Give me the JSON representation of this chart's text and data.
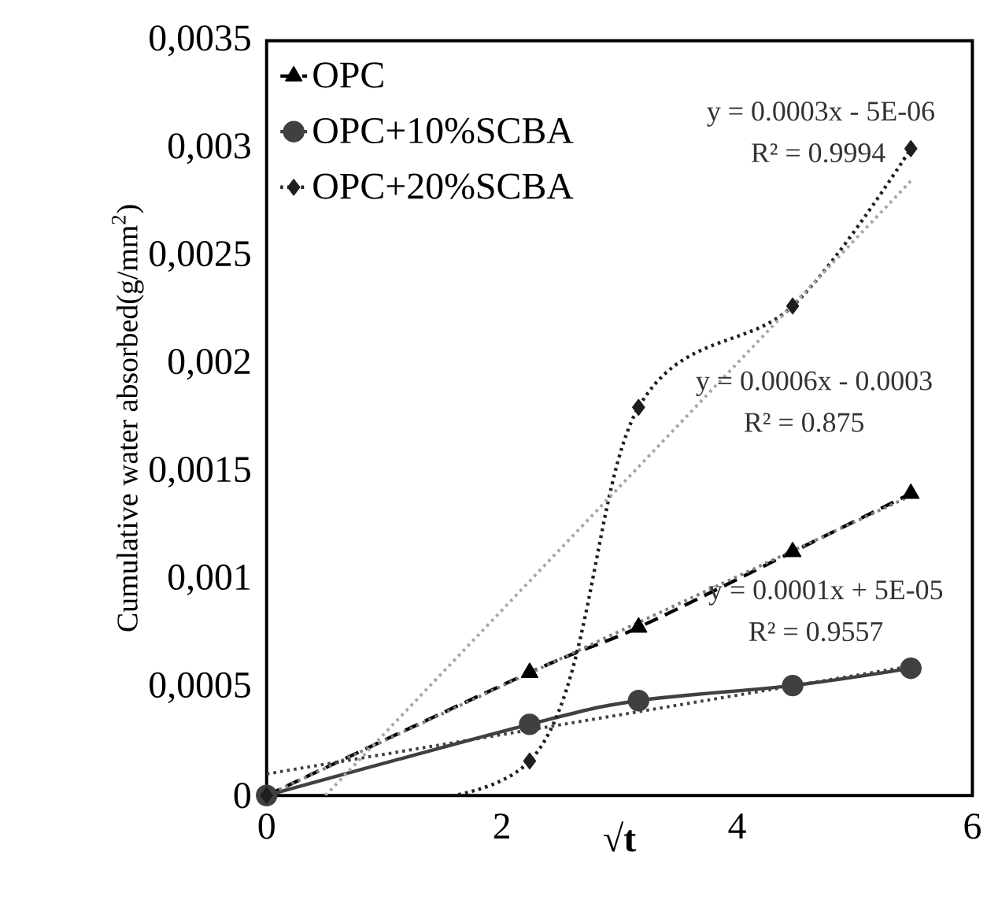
{
  "chart_data": {
    "type": "line",
    "xlabel": "√**t**",
    "ylabel": "Cumulative water absorbed(g/mm$^{2}$)",
    "xlim": [
      0,
      6
    ],
    "xticks": [
      0,
      2,
      4,
      6
    ],
    "ylim": [
      0,
      0.0035
    ],
    "yticks": [
      0,
      {
        "value": 0.0005,
        "label": "0,0005"
      },
      {
        "value": 0.001,
        "label": "0,001"
      },
      {
        "value": 0.0015,
        "label": "0,0015"
      },
      {
        "value": 0.002,
        "label": "0,002"
      },
      {
        "value": 0.0025,
        "label": "0,0025"
      },
      {
        "value": 0.003,
        "label": "0,003"
      },
      {
        "value": 0.0035,
        "label": "0,0035"
      }
    ],
    "x": [
      0,
      2.236,
      3.162,
      4.472,
      5.477
    ],
    "series": [
      {
        "name": "OPC",
        "color": "#000000",
        "line_style": "dashed",
        "marker": "triangle",
        "values": [
          0,
          0.00057,
          0.00078,
          0.00113,
          0.0014
        ]
      },
      {
        "name": "OPC+10%SCBA",
        "color": "#404040",
        "line_style": "solid",
        "marker": "circle",
        "values": [
          0,
          0.00033,
          0.00044,
          0.00051,
          0.00059
        ]
      },
      {
        "name": "OPC+20%SCBA",
        "color": "#1f1f1f",
        "line_style": "dotted",
        "marker": "diamond",
        "values": [
          0,
          0.00016,
          0.0018,
          0.00227,
          0.003
        ]
      },
      {
        "type": "line",
        "color": "#7f7f7f",
        "line_style": "dotted",
        "marker": "none",
        "x": [
          0,
          5.477
        ],
        "values": [
          0,
          0.00139
        ]
      },
      {
        "type": "line",
        "color": "#404040",
        "line_style": "dotted",
        "marker": "none",
        "x": [
          0,
          5.477
        ],
        "values": [
          0.0001,
          0.0006
        ]
      },
      {
        "type": "line",
        "color": "#a6a6a6",
        "line_style": "dotted",
        "marker": "none",
        "x": [
          0.5,
          5.477
        ],
        "values": [
          0,
          0.00285
        ]
      }
    ],
    "legend": "top left",
    "grid": false,
    "annotations": [
      "y = 0.0003x - 5E-06",
      "R² = 0.9994",
      "y = 0.0006x - 0.0003",
      "R² = 0.875",
      "y = 0.0001x + 5E-05",
      "R² = 0.9557"
    ]
  }
}
